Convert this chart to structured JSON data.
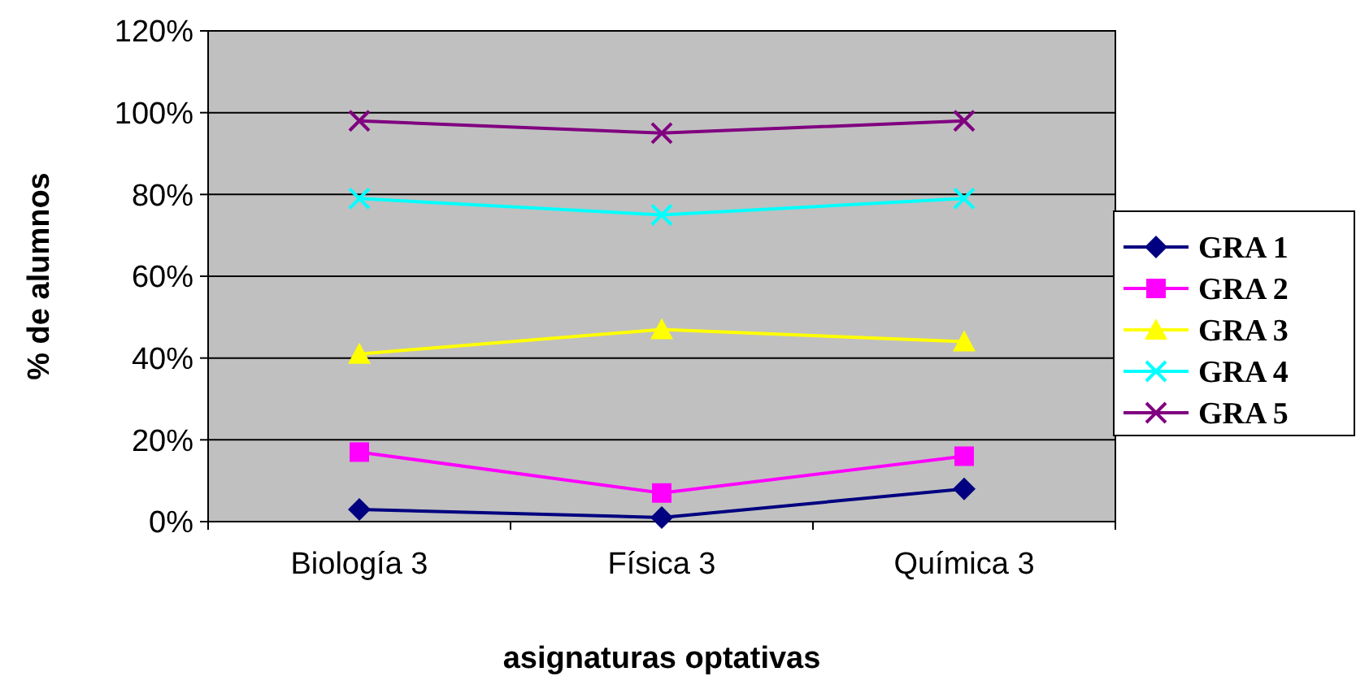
{
  "chart_data": {
    "type": "line",
    "xlabel": "asignaturas optativas",
    "ylabel": "% de alumnos",
    "categories": [
      "Biología 3",
      "Física 3",
      "Química 3"
    ],
    "ylim": [
      0,
      1.2
    ],
    "yticks": [
      {
        "value": 0,
        "label": "0%"
      },
      {
        "value": 0.2,
        "label": "20%"
      },
      {
        "value": 0.4,
        "label": "40%"
      },
      {
        "value": 0.6,
        "label": "60%"
      },
      {
        "value": 0.8,
        "label": "80%"
      },
      {
        "value": 1,
        "label": "100%"
      },
      {
        "value": 1.2,
        "label": "120%"
      }
    ],
    "grid": "y",
    "legend": "right",
    "series": [
      {
        "name": "GRA 1",
        "color": "#000080",
        "marker": "diamond",
        "values": [
          0.03,
          0.01,
          0.08
        ]
      },
      {
        "name": "GRA 2",
        "color": "#ff00ff",
        "marker": "square",
        "values": [
          0.17,
          0.07,
          0.16
        ]
      },
      {
        "name": "GRA 3",
        "color": "#ffff00",
        "marker": "triangle",
        "values": [
          0.41,
          0.47,
          0.44
        ]
      },
      {
        "name": "GRA 4",
        "color": "#00ffff",
        "marker": "cross",
        "values": [
          0.79,
          0.75,
          0.79
        ]
      },
      {
        "name": "GRA 5",
        "color": "#800080",
        "marker": "cross",
        "values": [
          0.98,
          0.95,
          0.98
        ]
      }
    ]
  }
}
